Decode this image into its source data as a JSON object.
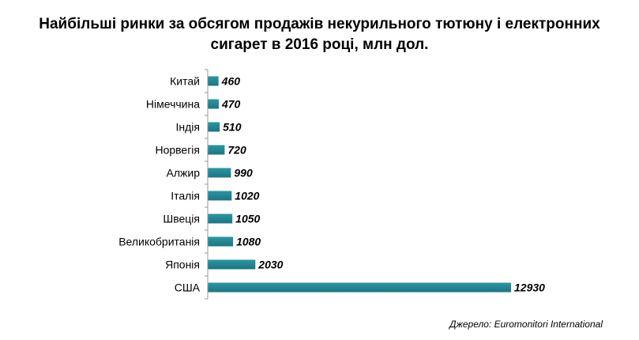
{
  "title_lines": [
    "Найбільші ринки за обсягом продажів некурильного тютюну і електронних",
    "сигарет в 2016 році, млн дол."
  ],
  "source": "Джерело: Euromonitori International",
  "colors": {
    "bar": "#2a96a4",
    "bar_dark": "#1b7582",
    "axis": "#9a9a9a"
  },
  "chart_data": {
    "type": "bar",
    "orientation": "horizontal",
    "title": "Найбільші ринки за обсягом продажів некурильного тютюну і електронних сигарет в 2016 році, млн дол.",
    "categories": [
      "Китай",
      "Німеччина",
      "Індія",
      "Норвегія",
      "Алжир",
      "Італія",
      "Швеція",
      "Великобританія",
      "Японія",
      "США"
    ],
    "values": [
      460,
      470,
      510,
      720,
      990,
      1020,
      1050,
      1080,
      2030,
      12930
    ],
    "data_labels": [
      "460",
      "470",
      "510",
      "720",
      "990",
      "1020",
      "1050",
      "1080",
      "2030",
      "12930"
    ],
    "xlim": [
      0,
      14000
    ],
    "grid": false,
    "legend": "none"
  }
}
